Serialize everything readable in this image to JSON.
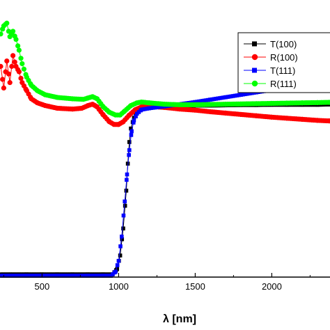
{
  "chart_data": {
    "type": "scatter",
    "xlabel": "λ [nm]",
    "ylabel": "",
    "xlim": [
      230,
      2380
    ],
    "ylim": [
      0,
      1.0
    ],
    "x_ticks": [
      500,
      1000,
      1500,
      2000
    ],
    "legend": {
      "placement": "top-right"
    },
    "grid": false,
    "series": [
      {
        "name": "T(100)",
        "color": "#000000",
        "marker": "square",
        "points": [
          [
            230,
            0.01
          ],
          [
            300,
            0.01
          ],
          [
            400,
            0.01
          ],
          [
            500,
            0.01
          ],
          [
            600,
            0.01
          ],
          [
            700,
            0.01
          ],
          [
            800,
            0.01
          ],
          [
            900,
            0.01
          ],
          [
            960,
            0.01
          ],
          [
            990,
            0.03
          ],
          [
            1010,
            0.08
          ],
          [
            1030,
            0.18
          ],
          [
            1050,
            0.32
          ],
          [
            1060,
            0.42
          ],
          [
            1070,
            0.5
          ],
          [
            1080,
            0.55
          ],
          [
            1100,
            0.59
          ],
          [
            1120,
            0.615
          ],
          [
            1150,
            0.625
          ],
          [
            1200,
            0.628
          ],
          [
            1300,
            0.632
          ],
          [
            1400,
            0.633
          ],
          [
            1500,
            0.635
          ],
          [
            1600,
            0.635
          ],
          [
            1700,
            0.636
          ],
          [
            1800,
            0.637
          ],
          [
            1900,
            0.637
          ],
          [
            2000,
            0.638
          ],
          [
            2100,
            0.638
          ],
          [
            2200,
            0.638
          ],
          [
            2300,
            0.638
          ],
          [
            2380,
            0.639
          ]
        ]
      },
      {
        "name": "R(100)",
        "color": "#ff0000",
        "marker": "circle",
        "points": [
          [
            230,
            0.78
          ],
          [
            250,
            0.7
          ],
          [
            270,
            0.8
          ],
          [
            290,
            0.72
          ],
          [
            310,
            0.82
          ],
          [
            330,
            0.78
          ],
          [
            350,
            0.76
          ],
          [
            370,
            0.72
          ],
          [
            400,
            0.69
          ],
          [
            430,
            0.66
          ],
          [
            470,
            0.645
          ],
          [
            520,
            0.635
          ],
          [
            600,
            0.625
          ],
          [
            700,
            0.622
          ],
          [
            760,
            0.625
          ],
          [
            800,
            0.635
          ],
          [
            830,
            0.64
          ],
          [
            860,
            0.63
          ],
          [
            900,
            0.6
          ],
          [
            940,
            0.575
          ],
          [
            970,
            0.565
          ],
          [
            1000,
            0.565
          ],
          [
            1030,
            0.575
          ],
          [
            1070,
            0.6
          ],
          [
            1110,
            0.62
          ],
          [
            1150,
            0.63
          ],
          [
            1200,
            0.632
          ],
          [
            1300,
            0.628
          ],
          [
            1400,
            0.622
          ],
          [
            1500,
            0.618
          ],
          [
            1600,
            0.612
          ],
          [
            1700,
            0.607
          ],
          [
            1800,
            0.602
          ],
          [
            1900,
            0.597
          ],
          [
            2000,
            0.592
          ],
          [
            2100,
            0.588
          ],
          [
            2200,
            0.584
          ],
          [
            2300,
            0.58
          ],
          [
            2380,
            0.578
          ]
        ]
      },
      {
        "name": "T(111)",
        "color": "#0000ff",
        "marker": "square",
        "points": [
          [
            230,
            0.005
          ],
          [
            300,
            0.005
          ],
          [
            400,
            0.005
          ],
          [
            500,
            0.005
          ],
          [
            600,
            0.005
          ],
          [
            700,
            0.005
          ],
          [
            800,
            0.005
          ],
          [
            900,
            0.005
          ],
          [
            950,
            0.005
          ],
          [
            980,
            0.02
          ],
          [
            1000,
            0.06
          ],
          [
            1020,
            0.15
          ],
          [
            1040,
            0.28
          ],
          [
            1055,
            0.38
          ],
          [
            1070,
            0.47
          ],
          [
            1085,
            0.54
          ],
          [
            1100,
            0.58
          ],
          [
            1120,
            0.605
          ],
          [
            1150,
            0.62
          ],
          [
            1200,
            0.625
          ],
          [
            1300,
            0.632
          ],
          [
            1400,
            0.64
          ],
          [
            1500,
            0.648
          ],
          [
            1600,
            0.657
          ],
          [
            1700,
            0.666
          ],
          [
            1800,
            0.675
          ],
          [
            1900,
            0.684
          ],
          [
            2000,
            0.693
          ],
          [
            2100,
            0.702
          ],
          [
            2200,
            0.711
          ],
          [
            2300,
            0.719
          ],
          [
            2380,
            0.725
          ]
        ]
      },
      {
        "name": "R(111)",
        "color": "#00ff00",
        "marker": "circle",
        "points": [
          [
            230,
            0.9
          ],
          [
            250,
            0.93
          ],
          [
            270,
            0.94
          ],
          [
            290,
            0.89
          ],
          [
            310,
            0.91
          ],
          [
            330,
            0.88
          ],
          [
            350,
            0.84
          ],
          [
            370,
            0.79
          ],
          [
            400,
            0.74
          ],
          [
            430,
            0.71
          ],
          [
            470,
            0.69
          ],
          [
            520,
            0.675
          ],
          [
            600,
            0.665
          ],
          [
            700,
            0.66
          ],
          [
            770,
            0.658
          ],
          [
            800,
            0.663
          ],
          [
            830,
            0.668
          ],
          [
            860,
            0.66
          ],
          [
            900,
            0.63
          ],
          [
            940,
            0.61
          ],
          [
            980,
            0.6
          ],
          [
            1010,
            0.6
          ],
          [
            1040,
            0.615
          ],
          [
            1080,
            0.635
          ],
          [
            1120,
            0.645
          ],
          [
            1150,
            0.648
          ],
          [
            1200,
            0.645
          ],
          [
            1300,
            0.64
          ],
          [
            1400,
            0.638
          ],
          [
            1500,
            0.638
          ],
          [
            1600,
            0.639
          ],
          [
            1700,
            0.64
          ],
          [
            1800,
            0.641
          ],
          [
            1900,
            0.642
          ],
          [
            2000,
            0.643
          ],
          [
            2100,
            0.644
          ],
          [
            2200,
            0.645
          ],
          [
            2300,
            0.646
          ],
          [
            2380,
            0.647
          ]
        ]
      }
    ]
  }
}
